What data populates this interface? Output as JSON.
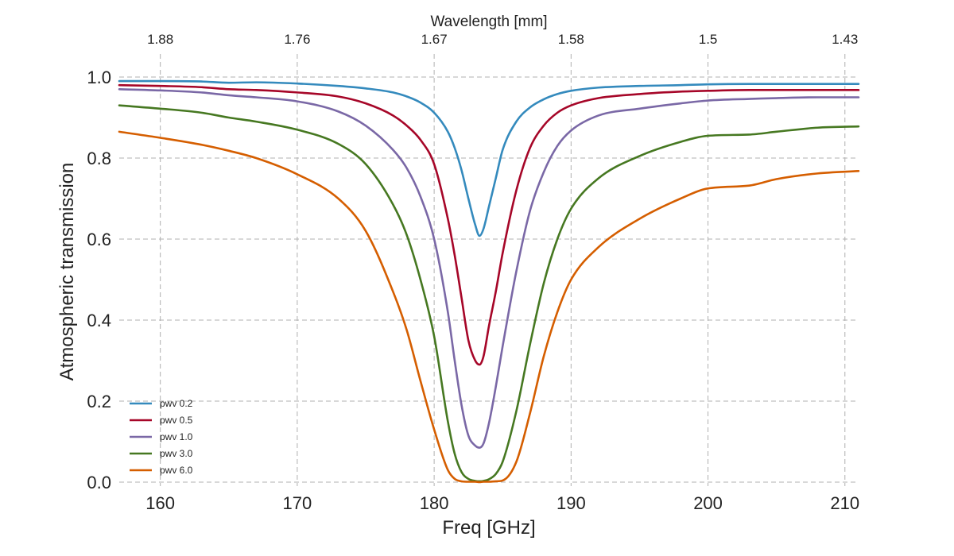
{
  "chart_data": {
    "type": "line",
    "xlabel": "Freq [GHz]",
    "ylabel": "Atmospheric transmission",
    "top_axis_label": "Wavelength [mm]",
    "xlim": [
      157,
      211
    ],
    "ylim": [
      0,
      1.0
    ],
    "x_ticks": [
      160,
      170,
      180,
      190,
      200,
      210
    ],
    "y_ticks": [
      0.0,
      0.2,
      0.4,
      0.6,
      0.8,
      1.0
    ],
    "y_tick_labels": [
      "0.0",
      "0.2",
      "0.4",
      "0.6",
      "0.8",
      "1.0"
    ],
    "top_ticks": [
      {
        "freq": 160,
        "label": "1.88"
      },
      {
        "freq": 170,
        "label": "1.76"
      },
      {
        "freq": 180,
        "label": "1.67"
      },
      {
        "freq": 190,
        "label": "1.58"
      },
      {
        "freq": 200,
        "label": "1.5"
      },
      {
        "freq": 210,
        "label": "1.43"
      }
    ],
    "grid": true,
    "legend_position": "lower-left",
    "x": [
      157,
      160,
      163,
      165,
      167,
      170,
      173,
      175,
      177,
      178,
      179,
      180,
      181,
      181.5,
      182,
      182.5,
      183,
      183.31,
      183.6,
      184,
      184.5,
      185,
      186,
      187,
      188,
      189,
      190,
      192,
      195,
      198,
      200,
      203,
      205,
      208,
      211
    ],
    "series": [
      {
        "name": "pwv 0.2",
        "color": "#348abd",
        "values": [
          0.99,
          0.99,
          0.989,
          0.986,
          0.987,
          0.984,
          0.978,
          0.972,
          0.962,
          0.952,
          0.937,
          0.912,
          0.865,
          0.825,
          0.77,
          0.7,
          0.635,
          0.608,
          0.625,
          0.68,
          0.75,
          0.82,
          0.89,
          0.925,
          0.945,
          0.958,
          0.966,
          0.974,
          0.978,
          0.98,
          0.982,
          0.983,
          0.983,
          0.983,
          0.983
        ]
      },
      {
        "name": "pwv 0.5",
        "color": "#a60628",
        "values": [
          0.98,
          0.978,
          0.975,
          0.97,
          0.968,
          0.962,
          0.952,
          0.935,
          0.905,
          0.88,
          0.845,
          0.785,
          0.65,
          0.56,
          0.455,
          0.35,
          0.3,
          0.29,
          0.31,
          0.385,
          0.47,
          0.565,
          0.72,
          0.825,
          0.88,
          0.912,
          0.93,
          0.948,
          0.958,
          0.964,
          0.966,
          0.968,
          0.968,
          0.968,
          0.968
        ]
      },
      {
        "name": "pwv 1.0",
        "color": "#7a68a6",
        "values": [
          0.97,
          0.967,
          0.962,
          0.955,
          0.95,
          0.94,
          0.915,
          0.88,
          0.82,
          0.775,
          0.705,
          0.6,
          0.42,
          0.3,
          0.19,
          0.115,
          0.09,
          0.085,
          0.095,
          0.145,
          0.235,
          0.335,
          0.52,
          0.67,
          0.765,
          0.83,
          0.868,
          0.905,
          0.922,
          0.935,
          0.942,
          0.946,
          0.948,
          0.95,
          0.95
        ]
      },
      {
        "name": "pwv 3.0",
        "color": "#467821",
        "values": [
          0.93,
          0.922,
          0.912,
          0.9,
          0.89,
          0.87,
          0.835,
          0.785,
          0.685,
          0.61,
          0.5,
          0.36,
          0.15,
          0.07,
          0.025,
          0.008,
          0.003,
          0.002,
          0.003,
          0.007,
          0.02,
          0.05,
          0.175,
          0.34,
          0.49,
          0.6,
          0.675,
          0.75,
          0.805,
          0.84,
          0.855,
          0.858,
          0.865,
          0.875,
          0.878
        ]
      },
      {
        "name": "pwv 6.0",
        "color": "#d55e00",
        "values": [
          0.865,
          0.85,
          0.833,
          0.818,
          0.8,
          0.76,
          0.7,
          0.62,
          0.47,
          0.375,
          0.25,
          0.13,
          0.03,
          0.008,
          0.002,
          0.001,
          0.001,
          0.0,
          0.001,
          0.001,
          0.002,
          0.004,
          0.05,
          0.17,
          0.31,
          0.42,
          0.5,
          0.58,
          0.65,
          0.7,
          0.725,
          0.732,
          0.748,
          0.762,
          0.768
        ]
      }
    ]
  }
}
